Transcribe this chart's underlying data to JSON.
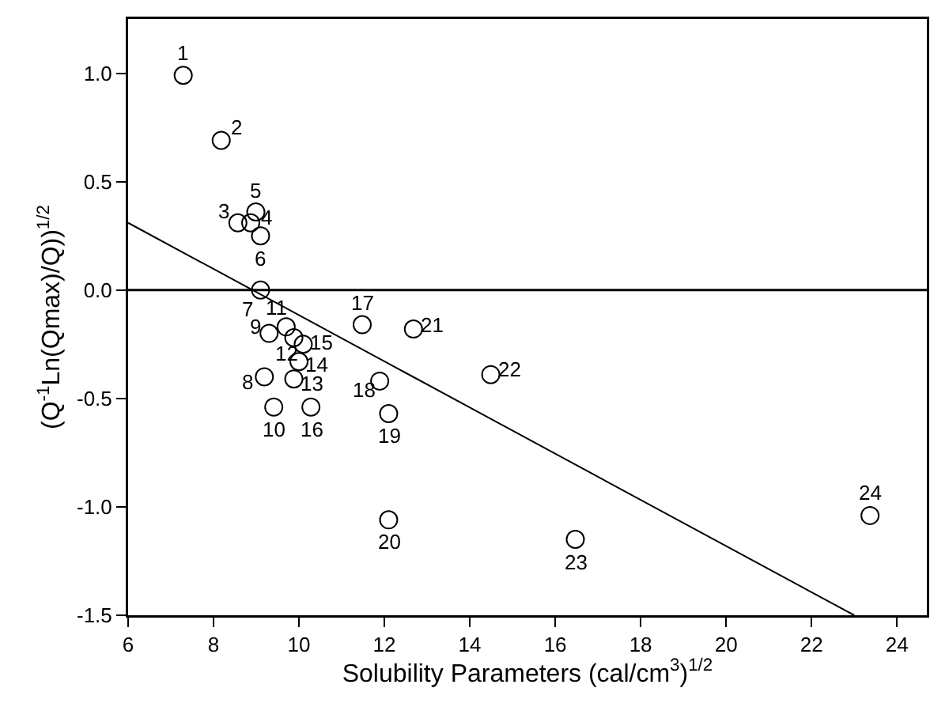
{
  "chart_data": {
    "type": "scatter",
    "xlabel": "Solubility Parameters (cal/cm$^{3}$)$^{1/2}$",
    "ylabel": "(Q$^{-1}$Ln(Qmax)/Q))$^{1/2}$",
    "x": [
      7.29,
      8.18,
      8.57,
      8.87,
      8.99,
      9.1,
      9.1,
      9.19,
      9.3,
      9.41,
      9.7,
      9.88,
      9.88,
      10.0,
      10.1,
      10.28,
      11.48,
      11.89,
      12.1,
      12.1,
      12.68,
      14.49,
      16.47,
      23.37
    ],
    "series": [
      {
        "color": "#000000",
        "marker": "circle",
        "values": [
          0.99,
          0.69,
          0.31,
          0.31,
          0.36,
          0.25,
          0.0,
          -0.4,
          -0.2,
          -0.54,
          -0.17,
          -0.22,
          -0.41,
          -0.33,
          -0.25,
          -0.54,
          -0.16,
          -0.42,
          -0.57,
          -1.06,
          -0.18,
          -0.39,
          -1.15,
          -1.04
        ]
      },
      {
        "type": "line",
        "color": "#000000",
        "x": [
          6,
          23
        ],
        "values": [
          0.31,
          -1.5
        ]
      }
    ],
    "xlim": [
      6,
      24.7
    ],
    "xticks": [
      6,
      8,
      10,
      12,
      14,
      16,
      18,
      20,
      22,
      24
    ],
    "ylim": [
      -1.5,
      1.25
    ],
    "yticks": [
      {
        "value": -1.5,
        "label": "-1.5"
      },
      {
        "value": -1,
        "label": "-1.0"
      },
      {
        "value": -0.5,
        "label": "-0.5"
      },
      {
        "value": 0,
        "label": "0.0"
      },
      {
        "value": 0.5,
        "label": "0.5"
      },
      {
        "value": 1,
        "label": "1.0"
      }
    ],
    "ref_lines": [
      {
        "axis": "y",
        "value": 0,
        "color": "#000000"
      }
    ],
    "annotations": [
      {
        "text": "1",
        "x": 7.29,
        "y": 0.99
      },
      {
        "text": "2",
        "x": 8.18,
        "y": 0.69
      },
      {
        "text": "3",
        "x": 8.57,
        "y": 0.31
      },
      {
        "text": "4",
        "x": 8.87,
        "y": 0.31
      },
      {
        "text": "5",
        "x": 8.99,
        "y": 0.36
      },
      {
        "text": "6",
        "x": 9.1,
        "y": 0.25
      },
      {
        "text": "7",
        "x": 9.1,
        "y": 0.0
      },
      {
        "text": "8",
        "x": 9.19,
        "y": -0.4
      },
      {
        "text": "9",
        "x": 9.3,
        "y": -0.2
      },
      {
        "text": "10",
        "x": 9.41,
        "y": -0.54
      },
      {
        "text": "11",
        "x": 9.7,
        "y": -0.17
      },
      {
        "text": "12",
        "x": 9.88,
        "y": -0.22
      },
      {
        "text": "13",
        "x": 9.88,
        "y": -0.41
      },
      {
        "text": "14",
        "x": 10.0,
        "y": -0.33
      },
      {
        "text": "15",
        "x": 10.1,
        "y": -0.25
      },
      {
        "text": "16",
        "x": 10.28,
        "y": -0.54
      },
      {
        "text": "17",
        "x": 11.48,
        "y": -0.16
      },
      {
        "text": "18",
        "x": 11.89,
        "y": -0.42
      },
      {
        "text": "19",
        "x": 12.1,
        "y": -0.57
      },
      {
        "text": "20",
        "x": 12.1,
        "y": -1.06
      },
      {
        "text": "21",
        "x": 12.68,
        "y": -0.18
      },
      {
        "text": "22",
        "x": 14.49,
        "y": -0.39
      },
      {
        "text": "23",
        "x": 16.47,
        "y": -1.15
      },
      {
        "text": "24",
        "x": 23.37,
        "y": -1.04
      }
    ],
    "grid": false
  }
}
